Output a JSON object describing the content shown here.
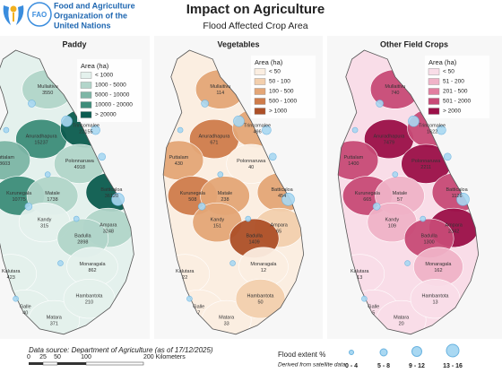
{
  "header": {
    "org_lines": [
      "Food and Agriculture",
      "Organization of the",
      "United Nations"
    ],
    "title": "Impact on Agriculture",
    "subtitle": "Flood Affected Crop Area"
  },
  "maps": [
    {
      "title": "Paddy",
      "legend_title": "Area (ha)",
      "legend": [
        {
          "label": "< 1000",
          "color": "#e4f1ed"
        },
        {
          "label": "1000 - 5000",
          "color": "#b2d5ca"
        },
        {
          "label": "5000 - 10000",
          "color": "#7db6a6"
        },
        {
          "label": "10000 - 20000",
          "color": "#3d8d7a"
        },
        {
          "label": "> 20000",
          "color": "#0c5c50"
        }
      ],
      "districts": [
        {
          "name": "Mullaitivu",
          "value": 3550
        },
        {
          "name": "Anuradhapura",
          "value": 15237
        },
        {
          "name": "Trincomalee",
          "value": 22155
        },
        {
          "name": "Puttalam",
          "value": 8603
        },
        {
          "name": "Polonnaruwa",
          "value": 4918
        },
        {
          "name": "Kurunegala",
          "value": 10775
        },
        {
          "name": "Batticaloa",
          "value": 36120
        },
        {
          "name": "Matale",
          "value": 1738
        },
        {
          "name": "Kandy",
          "value": 315
        },
        {
          "name": "Ampara",
          "value": 3248
        },
        {
          "name": "Badulla",
          "value": 2898
        },
        {
          "name": "Monaragala",
          "value": 862
        },
        {
          "name": "Kalutara",
          "value": 423
        },
        {
          "name": "Galle",
          "value": 40
        },
        {
          "name": "Matara",
          "value": 371
        },
        {
          "name": "Hambantota",
          "value": 210
        }
      ]
    },
    {
      "title": "Vegetables",
      "legend_title": "Area (ha)",
      "legend": [
        {
          "label": "< 50",
          "color": "#fbeee1"
        },
        {
          "label": "50 - 100",
          "color": "#f3cfad"
        },
        {
          "label": "100 - 500",
          "color": "#e4a677"
        },
        {
          "label": "500 - 1000",
          "color": "#cf7c4b"
        },
        {
          "label": "> 1000",
          "color": "#ad5028"
        }
      ],
      "districts": [
        {
          "name": "Mullaitivu",
          "value": 114
        },
        {
          "name": "Anuradhapura",
          "value": 671
        },
        {
          "name": "Trincomalee",
          "value": 496
        },
        {
          "name": "Puttalam",
          "value": 430
        },
        {
          "name": "Polonnaruwa",
          "value": 40
        },
        {
          "name": "Kurunegala",
          "value": 508
        },
        {
          "name": "Batticaloa",
          "value": 454
        },
        {
          "name": "Matale",
          "value": 238
        },
        {
          "name": "Kandy",
          "value": 151
        },
        {
          "name": "Ampara",
          "value": 65
        },
        {
          "name": "Badulla",
          "value": 1409
        },
        {
          "name": "Monaragala",
          "value": 12
        },
        {
          "name": "Kalutara",
          "value": 22
        },
        {
          "name": "Galle",
          "value": 7
        },
        {
          "name": "Matara",
          "value": 33
        },
        {
          "name": "Hambantota",
          "value": 50
        }
      ]
    },
    {
      "title": "Other Field Crops",
      "legend_title": "Area (ha)",
      "legend": [
        {
          "label": "< 50",
          "color": "#f9dde8"
        },
        {
          "label": "51 - 200",
          "color": "#f0b3c8"
        },
        {
          "label": "201 - 500",
          "color": "#e27ea0"
        },
        {
          "label": "501 - 2000",
          "color": "#c84a77"
        },
        {
          "label": "> 2000",
          "color": "#9b0f48"
        }
      ],
      "districts": [
        {
          "name": "Mullaitivu",
          "value": 740
        },
        {
          "name": "Anuradhapura",
          "value": 7479
        },
        {
          "name": "Trincomalee",
          "value": 1622
        },
        {
          "name": "Puttalam",
          "value": 1400
        },
        {
          "name": "Polonnaruwa",
          "value": 2211
        },
        {
          "name": "Kurunegala",
          "value": 665
        },
        {
          "name": "Batticaloa",
          "value": 1126
        },
        {
          "name": "Matale",
          "value": 57
        },
        {
          "name": "Kandy",
          "value": 109
        },
        {
          "name": "Ampara",
          "value": 2342
        },
        {
          "name": "Badulla",
          "value": 1300
        },
        {
          "name": "Monaragala",
          "value": 162
        },
        {
          "name": "Kalutara",
          "value": 13
        },
        {
          "name": "Galle",
          "value": 5
        },
        {
          "name": "Matara",
          "value": 20
        },
        {
          "name": "Hambantota",
          "value": 13
        }
      ]
    }
  ],
  "footer": {
    "source": "Data source: Department of Agriculture (as of 17/12/2025)",
    "scale_labels": [
      "0",
      "25",
      "50",
      "100",
      "200 Kilometers"
    ],
    "flood_title": "Flood extent %",
    "flood_note": "Derived from satellite data",
    "flood_classes": [
      "0 - 4",
      "5 - 8",
      "9 - 12",
      "13 - 16"
    ]
  }
}
